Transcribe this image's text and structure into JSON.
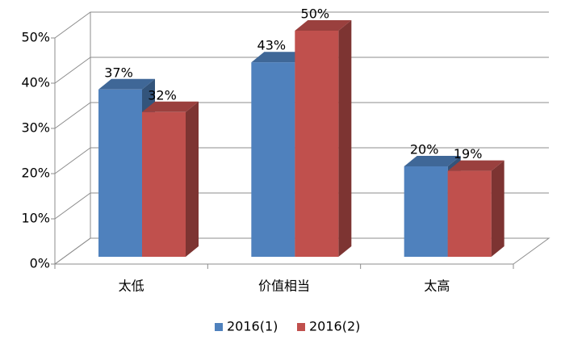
{
  "chart_data": {
    "type": "bar3d",
    "categories": [
      "太低",
      "价值相当",
      "太高"
    ],
    "series": [
      {
        "name": "2016(1)",
        "color": "#4f81bd",
        "values": [
          37,
          43,
          20
        ],
        "value_labels": [
          "37%",
          "43%",
          "20%"
        ]
      },
      {
        "name": "2016(2)",
        "color": "#c0504d",
        "values": [
          32,
          50,
          19
        ],
        "value_labels": [
          "32%",
          "50%",
          "19%"
        ]
      }
    ],
    "ylim": [
      0,
      50
    ],
    "yticks": [
      {
        "value": 0,
        "label": "0%"
      },
      {
        "value": 10,
        "label": "10%"
      },
      {
        "value": 20,
        "label": "20%"
      },
      {
        "value": 30,
        "label": "30%"
      },
      {
        "value": 40,
        "label": "40%"
      },
      {
        "value": 50,
        "label": "50%"
      }
    ],
    "grid": true,
    "legend": "bottom"
  }
}
